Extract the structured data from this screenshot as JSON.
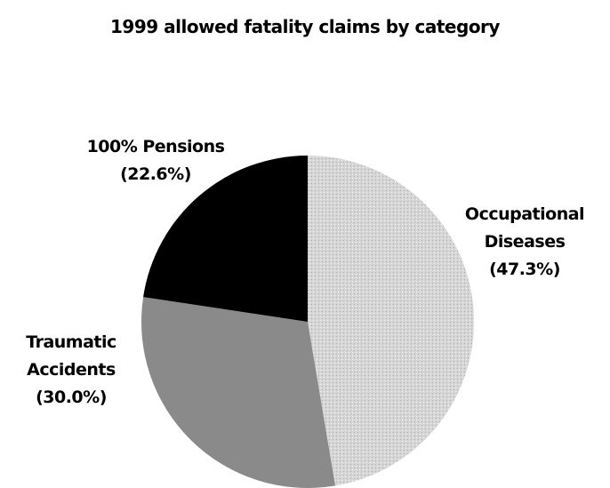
{
  "chart_data": {
    "type": "pie",
    "title": "1999 allowed fatality claims by category",
    "categories": [
      "Occupational Diseases",
      "Traumatic Accidents",
      "100% Pensions"
    ],
    "values": [
      47.3,
      30.0,
      22.6
    ],
    "value_labels": [
      "(47.3%)",
      "(30.0%)",
      "(22.6%)"
    ],
    "colors": [
      "#d6d6d6",
      "#8a8a8a",
      "#000000"
    ]
  }
}
